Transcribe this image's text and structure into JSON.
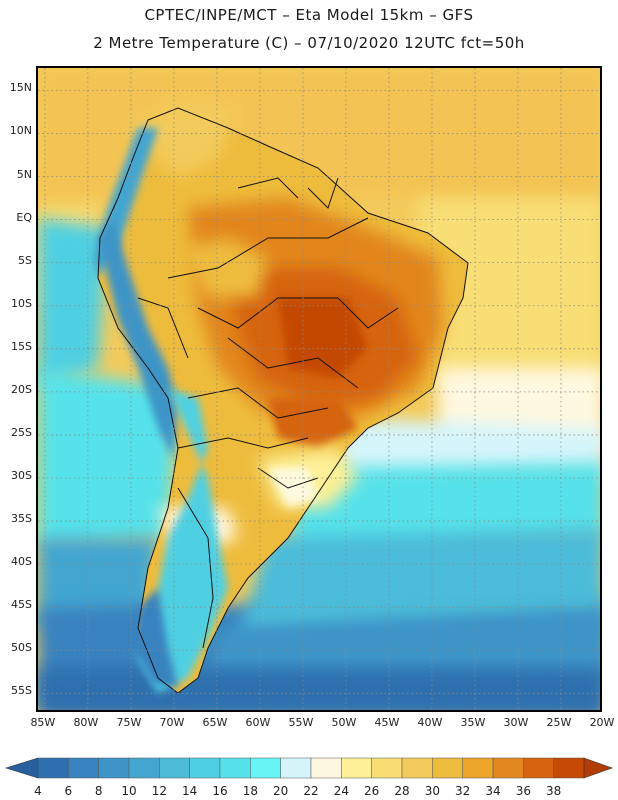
{
  "header": {
    "title_line1": "CPTEC/INPE/MCT –  Eta Model 15km – GFS",
    "title_line2": "2 Metre Temperature (C) – 07/10/2020 12UTC fct=50h"
  },
  "map": {
    "lat_labels": [
      "15N",
      "10N",
      "5N",
      "EQ",
      "5S",
      "10S",
      "15S",
      "20S",
      "25S",
      "30S",
      "35S",
      "40S",
      "45S",
      "50S",
      "55S"
    ],
    "lon_labels": [
      "85W",
      "80W",
      "75W",
      "70W",
      "65W",
      "60W",
      "55W",
      "50W",
      "45W",
      "40W",
      "35W",
      "30W",
      "25W",
      "20W"
    ],
    "lat_values": [
      15,
      10,
      5,
      0,
      -5,
      -10,
      -15,
      -20,
      -25,
      -30,
      -35,
      -40,
      -45,
      -50,
      -55
    ],
    "lon_values": [
      -85,
      -80,
      -75,
      -70,
      -65,
      -60,
      -55,
      -50,
      -45,
      -40,
      -35,
      -30,
      -25,
      -20
    ],
    "extent": {
      "lon_min": -85.8,
      "lon_max": -20.0,
      "lat_min": -57.4,
      "lat_max": 17.6
    }
  },
  "colorbar": {
    "labels": [
      "4",
      "6",
      "8",
      "10",
      "12",
      "14",
      "16",
      "18",
      "20",
      "22",
      "24",
      "26",
      "28",
      "30",
      "32",
      "34",
      "36",
      "38"
    ],
    "colors": [
      "#2e6fae",
      "#3882bf",
      "#3d94c7",
      "#43a6d1",
      "#4cbcd9",
      "#4fd0e2",
      "#56e2ea",
      "#66f5f4",
      "#d6f5fb",
      "#fff8e0",
      "#fdf096",
      "#f8de75",
      "#f3cb5c",
      "#eebc3c",
      "#eda62a",
      "#e2861e",
      "#d6640e",
      "#c44a06"
    ],
    "low_color": "#2a5f9e",
    "high_color": "#b23c06"
  }
}
